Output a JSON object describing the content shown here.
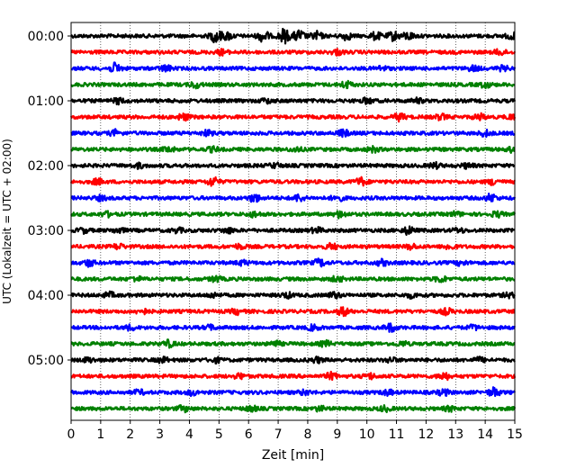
{
  "chart_data": {
    "type": "line",
    "title": "",
    "xlabel": "Zeit  [min]",
    "ylabel": "UTC (Lokalzeit = UTC + 02:00)",
    "xlim": [
      0,
      15
    ],
    "x_ticks": [
      "0",
      "1",
      "2",
      "3",
      "4",
      "5",
      "6",
      "7",
      "8",
      "9",
      "10",
      "11",
      "12",
      "13",
      "14",
      "15"
    ],
    "y_ticks": [
      "00:00",
      "01:00",
      "02:00",
      "03:00",
      "04:00",
      "05:00"
    ],
    "y_tick_rows": [
      0,
      4,
      8,
      12,
      16,
      20
    ],
    "grid": "vertical dotted at each minute",
    "legend": "none",
    "row_count": 24,
    "row_interval_minutes": 15,
    "color_cycle": [
      "#000000",
      "#ff0000",
      "#0000ff",
      "#008000"
    ],
    "bursts": [
      [
        [
          4.9,
          0.9
        ],
        [
          5.3,
          0.5
        ],
        [
          6.5,
          0.8
        ],
        [
          7.2,
          1.0
        ],
        [
          7.7,
          0.8
        ],
        [
          8.3,
          0.6
        ],
        [
          9.3,
          0.5
        ],
        [
          10.3,
          0.5
        ],
        [
          10.9,
          0.6
        ],
        [
          11.4,
          0.5
        ],
        [
          14.9,
          0.4
        ]
      ],
      [
        [
          5.1,
          0.35
        ],
        [
          9.0,
          0.35
        ],
        [
          14.5,
          0.35
        ]
      ],
      [
        [
          1.5,
          0.7
        ],
        [
          3.2,
          0.4
        ],
        [
          10.5,
          0.3
        ],
        [
          13.6,
          0.35
        ],
        [
          14.6,
          0.3
        ]
      ],
      [
        [
          4.2,
          0.4
        ],
        [
          9.3,
          0.45
        ],
        [
          14.0,
          0.35
        ]
      ],
      [
        [
          1.6,
          0.35
        ],
        [
          6.6,
          0.3
        ],
        [
          10.0,
          0.35
        ],
        [
          11.7,
          0.3
        ]
      ],
      [
        [
          3.8,
          0.45
        ],
        [
          11.1,
          0.5
        ],
        [
          12.5,
          0.35
        ],
        [
          13.8,
          0.4
        ],
        [
          14.9,
          0.3
        ]
      ],
      [
        [
          1.5,
          0.4
        ],
        [
          4.6,
          0.35
        ],
        [
          9.2,
          0.45
        ],
        [
          14.0,
          0.4
        ]
      ],
      [
        [
          3.3,
          0.35
        ],
        [
          4.8,
          0.3
        ],
        [
          7.6,
          0.3
        ],
        [
          10.2,
          0.35
        ],
        [
          14.9,
          0.3
        ]
      ],
      [
        [
          2.3,
          0.3
        ],
        [
          6.9,
          0.3
        ],
        [
          12.3,
          0.35
        ],
        [
          13.4,
          0.3
        ]
      ],
      [
        [
          0.9,
          0.35
        ],
        [
          4.8,
          0.6
        ],
        [
          9.8,
          0.55
        ],
        [
          14.3,
          0.4
        ]
      ],
      [
        [
          1.0,
          0.3
        ],
        [
          6.2,
          0.55
        ],
        [
          7.7,
          0.45
        ],
        [
          9.0,
          0.4
        ],
        [
          14.2,
          0.55
        ]
      ],
      [
        [
          1.2,
          0.3
        ],
        [
          6.2,
          0.35
        ],
        [
          9.1,
          0.45
        ],
        [
          13.0,
          0.3
        ],
        [
          14.4,
          0.35
        ]
      ],
      [
        [
          0.4,
          0.3
        ],
        [
          1.6,
          0.35
        ],
        [
          3.6,
          0.3
        ],
        [
          5.3,
          0.35
        ],
        [
          8.3,
          0.35
        ],
        [
          11.4,
          0.5
        ],
        [
          13.1,
          0.3
        ]
      ],
      [
        [
          1.6,
          0.35
        ],
        [
          5.7,
          0.3
        ],
        [
          8.8,
          0.4
        ],
        [
          11.5,
          0.35
        ],
        [
          12.8,
          0.35
        ]
      ],
      [
        [
          0.6,
          0.45
        ],
        [
          5.8,
          0.3
        ],
        [
          8.4,
          0.5
        ],
        [
          10.5,
          0.4
        ],
        [
          13.2,
          0.3
        ]
      ],
      [
        [
          2.2,
          0.3
        ],
        [
          4.9,
          0.35
        ],
        [
          9.0,
          0.35
        ],
        [
          12.5,
          0.4
        ]
      ],
      [
        [
          1.3,
          0.35
        ],
        [
          4.8,
          0.3
        ],
        [
          7.3,
          0.35
        ],
        [
          8.9,
          0.4
        ],
        [
          11.5,
          0.3
        ],
        [
          14.8,
          0.3
        ]
      ],
      [
        [
          2.4,
          0.35
        ],
        [
          5.6,
          0.35
        ],
        [
          9.2,
          0.55
        ],
        [
          12.7,
          0.4
        ]
      ],
      [
        [
          2.0,
          0.3
        ],
        [
          4.7,
          0.3
        ],
        [
          8.2,
          0.35
        ],
        [
          10.8,
          0.55
        ],
        [
          13.6,
          0.3
        ]
      ],
      [
        [
          3.3,
          0.45
        ],
        [
          6.9,
          0.35
        ],
        [
          8.6,
          0.35
        ],
        [
          11.2,
          0.3
        ]
      ],
      [
        [
          0.6,
          0.3
        ],
        [
          3.1,
          0.35
        ],
        [
          4.9,
          0.3
        ],
        [
          8.3,
          0.35
        ],
        [
          10.8,
          0.3
        ],
        [
          13.8,
          0.3
        ]
      ],
      [
        [
          5.7,
          0.35
        ],
        [
          8.8,
          0.45
        ],
        [
          10.1,
          0.35
        ],
        [
          12.6,
          0.5
        ]
      ],
      [
        [
          2.3,
          0.3
        ],
        [
          4.1,
          0.35
        ],
        [
          7.9,
          0.3
        ],
        [
          10.7,
          0.35
        ],
        [
          12.6,
          0.4
        ],
        [
          14.3,
          0.6
        ]
      ],
      [
        [
          3.8,
          0.4
        ],
        [
          6.1,
          0.35
        ],
        [
          8.4,
          0.3
        ],
        [
          10.6,
          0.35
        ],
        [
          12.8,
          0.3
        ]
      ]
    ]
  }
}
